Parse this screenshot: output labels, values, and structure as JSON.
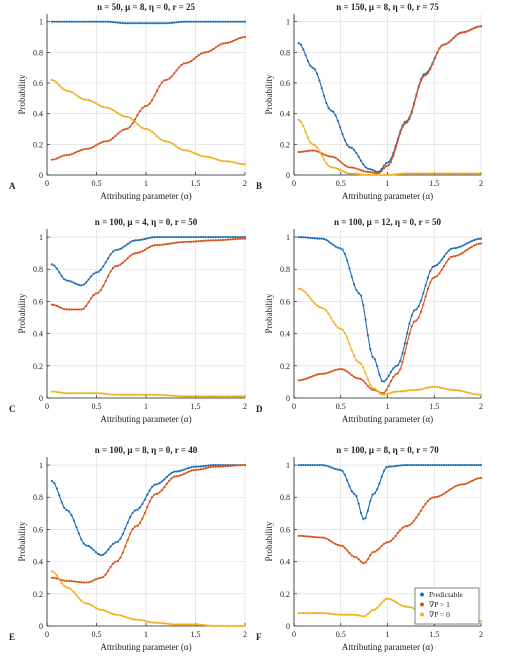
{
  "colors": {
    "predictable": "#1f6fb4",
    "gradient_gt_1": "#d95319",
    "gradient_eq_0": "#edb120",
    "grid": "#d9d9d9",
    "axis": "#222222"
  },
  "legend": {
    "entries": [
      "Predictable",
      "∇P > 1",
      "∇P = 0"
    ],
    "panel": "F",
    "placement": "bottom-right"
  },
  "chart_data": [
    {
      "type": "line",
      "panel_label": "A",
      "title": "n = 50, μ = 8, η = 0, r = 25",
      "xlabel": "Attributing parameter (α)",
      "ylabel": "Probability",
      "xlim": [
        0,
        2
      ],
      "ylim": [
        0,
        1.05
      ],
      "xticks": [
        "0",
        "0.5",
        "1",
        "1.5",
        "2"
      ],
      "yticks": [
        "0",
        "0.2",
        "0.4",
        "0.6",
        "0.8",
        "1"
      ],
      "grid": true,
      "x_knots": [
        0.05,
        0.2,
        0.4,
        0.6,
        0.8,
        1.0,
        1.2,
        1.4,
        1.6,
        1.8,
        2.0
      ],
      "series": [
        {
          "key": "predictable",
          "values": [
            1.0,
            1.0,
            1.0,
            1.0,
            0.99,
            0.99,
            0.99,
            1.0,
            1.0,
            1.0,
            1.0
          ]
        },
        {
          "key": "gradient_gt_1",
          "values": [
            0.1,
            0.13,
            0.17,
            0.22,
            0.3,
            0.45,
            0.62,
            0.73,
            0.8,
            0.86,
            0.9
          ]
        },
        {
          "key": "gradient_eq_0",
          "values": [
            0.62,
            0.55,
            0.49,
            0.44,
            0.38,
            0.3,
            0.22,
            0.16,
            0.12,
            0.09,
            0.07
          ]
        }
      ]
    },
    {
      "type": "line",
      "panel_label": "B",
      "title": "n = 150, μ = 8, η = 0, r = 75",
      "xlabel": "Attributing parameter (α)",
      "ylabel": "Probability",
      "xlim": [
        0,
        2
      ],
      "ylim": [
        0,
        1.05
      ],
      "xticks": [
        "0",
        "0.5",
        "1",
        "1.5",
        "2"
      ],
      "yticks": [
        "0",
        "0.2",
        "0.4",
        "0.6",
        "0.8",
        "1"
      ],
      "grid": true,
      "x_knots": [
        0.05,
        0.2,
        0.4,
        0.6,
        0.8,
        0.9,
        1.0,
        1.2,
        1.4,
        1.6,
        1.8,
        2.0
      ],
      "series": [
        {
          "key": "predictable",
          "values": [
            0.86,
            0.7,
            0.42,
            0.18,
            0.04,
            0.02,
            0.08,
            0.35,
            0.66,
            0.85,
            0.93,
            0.97
          ]
        },
        {
          "key": "gradient_gt_1",
          "values": [
            0.15,
            0.16,
            0.12,
            0.05,
            0.02,
            0.01,
            0.06,
            0.34,
            0.65,
            0.85,
            0.93,
            0.97
          ]
        },
        {
          "key": "gradient_eq_0",
          "values": [
            0.36,
            0.2,
            0.05,
            0.01,
            0.0,
            0.0,
            0.0,
            0.01,
            0.01,
            0.01,
            0.01,
            0.01
          ]
        }
      ]
    },
    {
      "type": "line",
      "panel_label": "C",
      "title": "n = 100, μ = 4, η = 0, r = 50",
      "xlabel": "Attributing parameter (α)",
      "ylabel": "Probability",
      "xlim": [
        0,
        2
      ],
      "ylim": [
        0,
        1.05
      ],
      "xticks": [
        "0",
        "0.5",
        "1",
        "1.5",
        "2"
      ],
      "yticks": [
        "0",
        "0.2",
        "0.4",
        "0.6",
        "0.8",
        "1"
      ],
      "grid": true,
      "x_knots": [
        0.05,
        0.2,
        0.35,
        0.5,
        0.7,
        0.9,
        1.1,
        1.4,
        1.7,
        2.0
      ],
      "series": [
        {
          "key": "predictable",
          "values": [
            0.83,
            0.73,
            0.7,
            0.78,
            0.92,
            0.98,
            1.0,
            1.0,
            1.0,
            1.0
          ]
        },
        {
          "key": "gradient_gt_1",
          "values": [
            0.58,
            0.55,
            0.55,
            0.65,
            0.82,
            0.9,
            0.95,
            0.97,
            0.98,
            0.99
          ]
        },
        {
          "key": "gradient_eq_0",
          "values": [
            0.04,
            0.03,
            0.03,
            0.03,
            0.02,
            0.02,
            0.02,
            0.01,
            0.01,
            0.01
          ]
        }
      ]
    },
    {
      "type": "line",
      "panel_label": "D",
      "title": "n = 100, μ = 12, η = 0, r = 50",
      "xlabel": "Attributing parameter (α)",
      "ylabel": "Probability",
      "xlim": [
        0,
        2
      ],
      "ylim": [
        0,
        1.05
      ],
      "xticks": [
        "0",
        "0.5",
        "1",
        "1.5",
        "2"
      ],
      "yticks": [
        "0",
        "0.2",
        "0.4",
        "0.6",
        "0.8",
        "1"
      ],
      "grid": true,
      "x_knots": [
        0.05,
        0.3,
        0.5,
        0.7,
        0.85,
        0.95,
        1.1,
        1.3,
        1.5,
        1.7,
        2.0
      ],
      "series": [
        {
          "key": "predictable",
          "values": [
            1.0,
            0.99,
            0.93,
            0.65,
            0.25,
            0.1,
            0.2,
            0.55,
            0.82,
            0.93,
            0.99
          ]
        },
        {
          "key": "gradient_gt_1",
          "values": [
            0.11,
            0.15,
            0.18,
            0.12,
            0.05,
            0.03,
            0.15,
            0.48,
            0.75,
            0.88,
            0.96
          ]
        },
        {
          "key": "gradient_eq_0",
          "values": [
            0.68,
            0.56,
            0.43,
            0.22,
            0.06,
            0.02,
            0.04,
            0.05,
            0.07,
            0.05,
            0.02
          ]
        }
      ]
    },
    {
      "type": "line",
      "panel_label": "E",
      "title": "n = 100, μ = 8, η = 0, r = 40",
      "xlabel": "Attributing parameter (α)",
      "ylabel": "Probability",
      "xlim": [
        0,
        2
      ],
      "ylim": [
        0,
        1.05
      ],
      "xticks": [
        "0",
        "0.5",
        "1",
        "1.5",
        "2"
      ],
      "yticks": [
        "0",
        "0.2",
        "0.4",
        "0.6",
        "0.8",
        "1"
      ],
      "grid": true,
      "x_knots": [
        0.05,
        0.2,
        0.4,
        0.55,
        0.7,
        0.9,
        1.1,
        1.3,
        1.5,
        1.7,
        2.0
      ],
      "series": [
        {
          "key": "predictable",
          "values": [
            0.9,
            0.72,
            0.5,
            0.44,
            0.52,
            0.72,
            0.88,
            0.96,
            0.99,
            1.0,
            1.0
          ]
        },
        {
          "key": "gradient_gt_1",
          "values": [
            0.3,
            0.28,
            0.27,
            0.3,
            0.4,
            0.62,
            0.82,
            0.93,
            0.97,
            0.99,
            1.0
          ]
        },
        {
          "key": "gradient_eq_0",
          "values": [
            0.34,
            0.24,
            0.14,
            0.1,
            0.07,
            0.04,
            0.02,
            0.01,
            0.01,
            0.0,
            0.0
          ]
        }
      ]
    },
    {
      "type": "line",
      "panel_label": "F",
      "title": "n = 100, μ = 8, η = 0, r = 70",
      "xlabel": "Attributing parameter (α)",
      "ylabel": "Probability",
      "xlim": [
        0,
        2
      ],
      "ylim": [
        0,
        1.05
      ],
      "xticks": [
        "0",
        "0.5",
        "1",
        "1.5",
        "2"
      ],
      "yticks": [
        "0",
        "0.2",
        "0.4",
        "0.6",
        "0.8",
        "1"
      ],
      "grid": true,
      "x_knots": [
        0.05,
        0.3,
        0.5,
        0.65,
        0.75,
        0.85,
        1.0,
        1.2,
        1.5,
        1.8,
        2.0
      ],
      "series": [
        {
          "key": "predictable",
          "values": [
            1.0,
            1.0,
            0.97,
            0.82,
            0.66,
            0.82,
            0.99,
            1.0,
            1.0,
            1.0,
            1.0
          ]
        },
        {
          "key": "gradient_gt_1",
          "values": [
            0.56,
            0.55,
            0.5,
            0.43,
            0.39,
            0.46,
            0.52,
            0.62,
            0.8,
            0.88,
            0.92
          ]
        },
        {
          "key": "gradient_eq_0",
          "values": [
            0.08,
            0.08,
            0.07,
            0.07,
            0.06,
            0.1,
            0.17,
            0.12,
            0.06,
            0.04,
            0.03
          ]
        }
      ]
    }
  ]
}
